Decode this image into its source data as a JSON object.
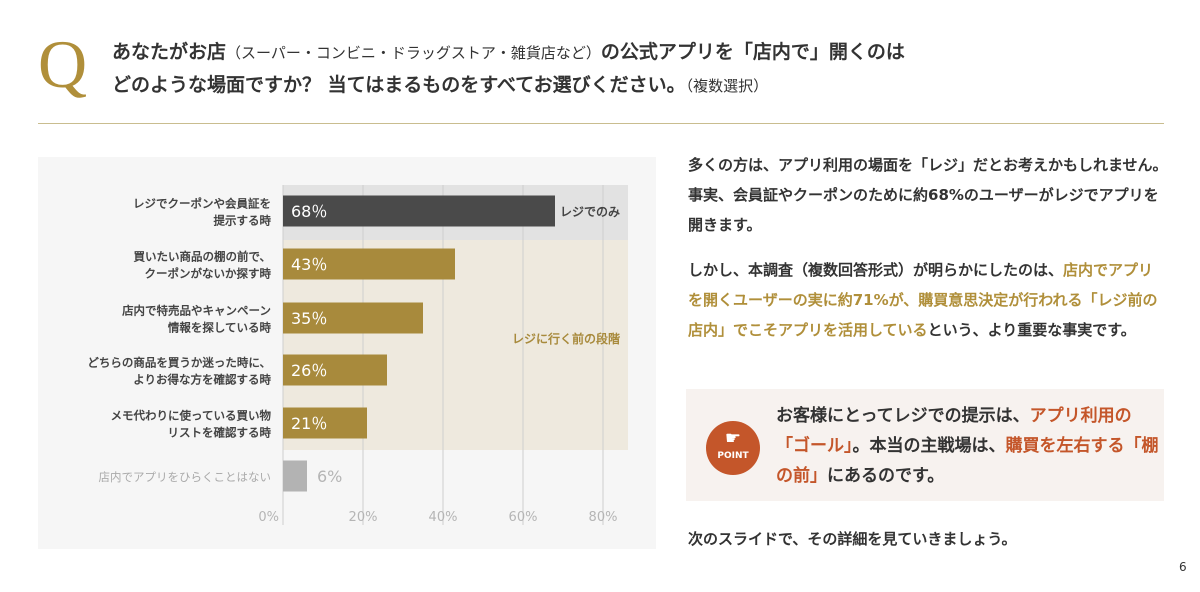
{
  "question": {
    "mark": "Q",
    "line1": "あなたがお店",
    "line1_paren": "（スーパー・コンビニ・ドラッグストア・雑貨店など）",
    "line1_rest": "の公式アプリを「店内で」開くのは",
    "line2": "どのような場面ですか？ 当てはまるものをすべてお選びください。",
    "line2_paren": "（複数選択）"
  },
  "chart_data": {
    "type": "bar",
    "orientation": "horizontal",
    "categories": [
      "レジでクーポンや会員証を\n提示する時",
      "買いたい商品の棚の前で、\nクーポンがないか探す時",
      "店内で特売品やキャンペーン\n情報を探している時",
      "どちらの商品を買うか迷った時に、\nよりお得な方を確認する時",
      "メモ代わりに使っている買い物\nリストを確認する時",
      "店内でアプリをひらくことはない"
    ],
    "values": [
      68,
      43,
      35,
      26,
      21,
      6
    ],
    "data_labels": [
      "68％",
      "43％",
      "35％",
      "26％",
      "21％",
      "6%"
    ],
    "bar_colors": [
      "#4a4a4a",
      "#a88a3c",
      "#a88a3c",
      "#a88a3c",
      "#a88a3c",
      "#b3b3b3"
    ],
    "xlim": [
      0,
      90
    ],
    "xticks": [
      "0%",
      "20%",
      "40%",
      "60%",
      "80%"
    ],
    "xtick_values": [
      0,
      20,
      40,
      60,
      80
    ],
    "grid": true,
    "bands": [
      {
        "label": "レジでのみ",
        "rows": [
          0
        ],
        "color": "#e2e2e2"
      },
      {
        "label": "レジに行く前の段階",
        "rows": [
          1,
          2,
          3,
          4
        ],
        "color": "#eee9de",
        "label_color": "#a88a3c"
      }
    ]
  },
  "body": {
    "p1": "多くの方は、アプリ利用の場面を「レジ」だとお考えかもしれません。事実、会員証やクーポンのために約68%のユーザーがレジでアプリを開きます。",
    "p2a": "しかし、本調査（複数回答形式）が明らかにしたのは、",
    "p2b": "店内でアプリを開くユーザーの実に約71%が、購買意思決定が行われる「レジ前の店内」でこそアプリを活用している",
    "p2c": "という、より重要な事実です。",
    "p3": "次のスライドで、その詳細を見ていきましょう。"
  },
  "point": {
    "badge": "POINT",
    "icon": "pointing-hand-icon",
    "t1": "お客様にとってレジでの提示は、",
    "t2": "アプリ利用の「ゴール」",
    "t3": "。本当の主戦場は、",
    "t4": "購買を左右する「棚の前」",
    "t5": "にあるのです。"
  },
  "page_number": "6"
}
